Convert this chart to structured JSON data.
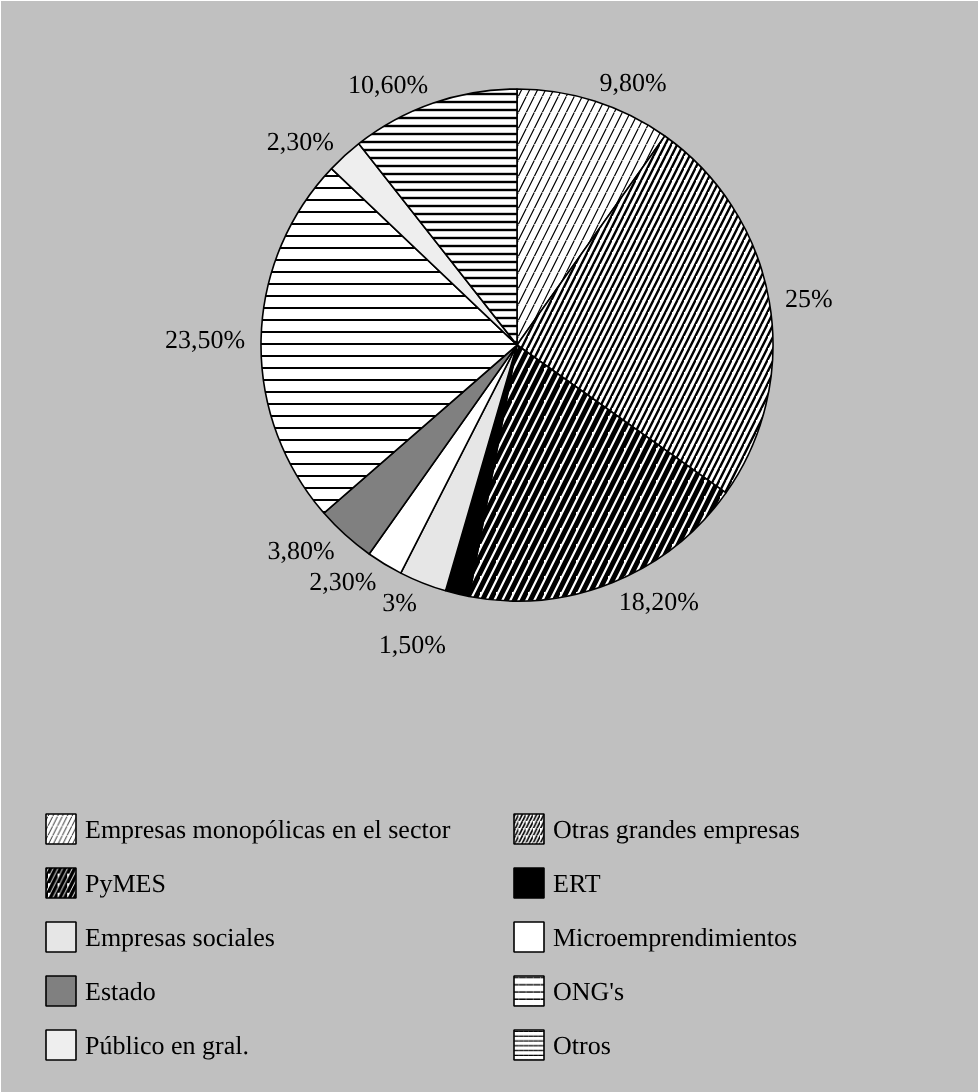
{
  "chart_data": {
    "type": "pie",
    "categories": [
      "Empresas monopólicas en el sector",
      "Otras grandes empresas",
      "PyMES",
      "ERT",
      "Empresas sociales",
      "Microemprendimientos",
      "Estado",
      "ONG's",
      "Público en gral.",
      "Otros"
    ],
    "values": [
      9.8,
      25,
      18.2,
      1.5,
      3,
      2.3,
      3.8,
      23.5,
      2.3,
      10.6
    ],
    "value_labels": [
      "9,80%",
      "25%",
      "18,20%",
      "1,50%",
      "3%",
      "2,30%",
      "3,80%",
      "23,50%",
      "2,30%",
      "10,60%"
    ],
    "colors": [
      "#ffffff",
      "#ffffff",
      "#ffffff",
      "#000000",
      "#e6e6e6",
      "#ffffff",
      "#808080",
      "#ffffff",
      "#eeeeee",
      "#ffffff"
    ],
    "legend": "bottom"
  }
}
